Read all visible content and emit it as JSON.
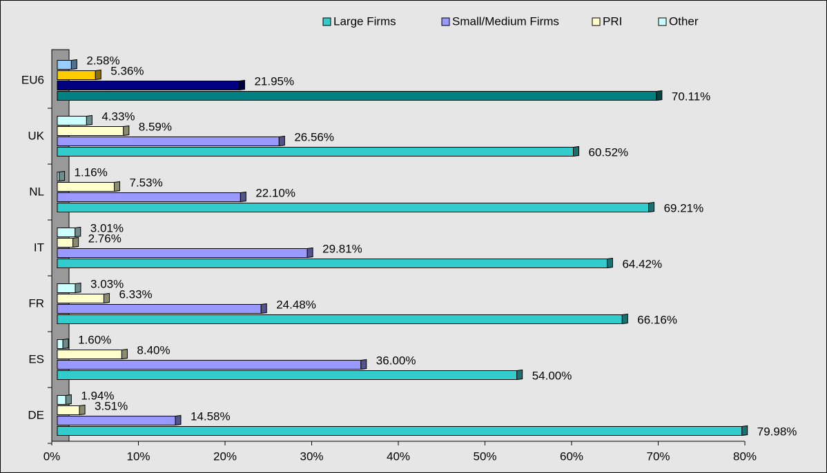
{
  "chart_data": {
    "type": "bar",
    "orientation": "horizontal",
    "categories": [
      "EU6",
      "UK",
      "NL",
      "IT",
      "FR",
      "ES",
      "DE"
    ],
    "series": [
      {
        "name": "Large Firms",
        "color": "#33cccc",
        "colors": [
          "#008080",
          "#33cccc",
          "#33cccc",
          "#33cccc",
          "#33cccc",
          "#33cccc",
          "#33cccc"
        ],
        "values": [
          70.11,
          60.52,
          69.21,
          64.42,
          66.16,
          54.0,
          79.98
        ],
        "value_labels": [
          "70.11%",
          "60.52%",
          "69.21%",
          "64.42%",
          "66.16%",
          "54.00%",
          "79.98%"
        ]
      },
      {
        "name": "Small/Medium Firms",
        "color": "#9999ff",
        "colors": [
          "#000080",
          "#9999ff",
          "#9999ff",
          "#9999ff",
          "#9999ff",
          "#9999ff",
          "#9999ff"
        ],
        "values": [
          21.95,
          26.56,
          22.1,
          29.81,
          24.48,
          36.0,
          14.58
        ],
        "value_labels": [
          "21.95%",
          "26.56%",
          "22.10%",
          "29.81%",
          "24.48%",
          "36.00%",
          "14.58%"
        ]
      },
      {
        "name": "PRI",
        "color": "#ffffcc",
        "colors": [
          "#ffcc00",
          "#ffffcc",
          "#ffffcc",
          "#ffffcc",
          "#ffffcc",
          "#ffffcc",
          "#ffffcc"
        ],
        "values": [
          5.36,
          8.59,
          7.53,
          2.76,
          6.33,
          8.4,
          3.51
        ],
        "value_labels": [
          "5.36%",
          "8.59%",
          "7.53%",
          "2.76%",
          "6.33%",
          "8.40%",
          "3.51%"
        ]
      },
      {
        "name": "Other",
        "color": "#ccffff",
        "colors": [
          "#99ccff",
          "#ccffff",
          "#ccffff",
          "#ccffff",
          "#ccffff",
          "#ccffff",
          "#ccffff"
        ],
        "values": [
          2.58,
          4.33,
          1.16,
          3.01,
          3.03,
          1.6,
          1.94
        ],
        "value_labels": [
          "2.58%",
          "4.33%",
          "1.16%",
          "3.01%",
          "3.03%",
          "1.60%",
          "1.94%"
        ]
      }
    ],
    "xlim": [
      0,
      80
    ],
    "xticks": [
      {
        "value": 0,
        "label": "0%"
      },
      {
        "value": 10,
        "label": "10%"
      },
      {
        "value": 20,
        "label": "20%"
      },
      {
        "value": 30,
        "label": "30%"
      },
      {
        "value": 40,
        "label": "40%"
      },
      {
        "value": 50,
        "label": "50%"
      },
      {
        "value": 60,
        "label": "60%"
      },
      {
        "value": 70,
        "label": "70%"
      },
      {
        "value": 80,
        "label": "80%"
      }
    ],
    "legend": "top-right"
  }
}
